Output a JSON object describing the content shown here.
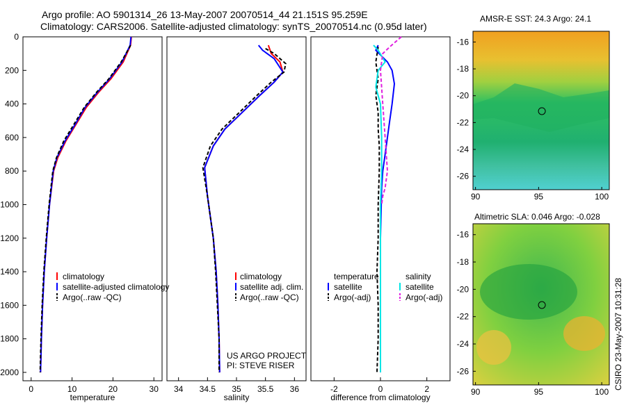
{
  "title": {
    "line1": "Argo profile: AO 5901314_26 13-May-2007 20070514_44 21.151S 95.259E",
    "line2": "Climatology: CARS2006. Satellite-adjusted climatology: synTS_20070514.nc (0.95d later)"
  },
  "footer_vertical": "CSIRO 23-May-2007 10:31:28",
  "project_note": [
    "US ARGO PROJECT",
    "PI: STEVE RISER"
  ],
  "colors": {
    "climatology": "#ff0000",
    "satellite": "#0000ff",
    "argo": "#000000",
    "sal_satellite": "#00e5e5",
    "sal_argo": "#e020e0"
  },
  "chart_data": [
    {
      "type": "line",
      "xlabel": "temperature",
      "xlim": [
        -2,
        32
      ],
      "xticks": [
        0,
        10,
        20,
        30
      ],
      "ylim": [
        2050,
        0
      ],
      "yticks": [
        0,
        200,
        400,
        600,
        800,
        1000,
        1200,
        1400,
        1600,
        1800,
        2000
      ],
      "legend": [
        "climatology",
        "satellite-adjusted climatology",
        "Argo(..raw -QC)"
      ],
      "series": [
        {
          "name": "climatology",
          "style": "solid",
          "color": "#ff0000",
          "x": [
            24.5,
            24.3,
            22.5,
            19.5,
            16.5,
            13.5,
            11.0,
            8.5,
            6.5,
            5.5,
            4.5,
            3.8,
            3.2,
            2.8,
            2.5,
            2.3
          ],
          "y": [
            0,
            50,
            150,
            250,
            330,
            420,
            520,
            620,
            720,
            800,
            1000,
            1200,
            1400,
            1600,
            1800,
            2000
          ]
        },
        {
          "name": "satellite-adjusted climatology",
          "style": "solid",
          "color": "#0000ff",
          "x": [
            24.4,
            24.2,
            22.2,
            19.2,
            16.2,
            13.2,
            10.8,
            8.3,
            6.3,
            5.4,
            4.5,
            3.8,
            3.2,
            2.8,
            2.5,
            2.3
          ],
          "y": [
            0,
            50,
            150,
            250,
            330,
            420,
            520,
            620,
            720,
            800,
            1000,
            1200,
            1400,
            1600,
            1800,
            2000
          ]
        },
        {
          "name": "Argo(..raw -QC)",
          "style": "dashed",
          "color": "#000000",
          "x": [
            24.3,
            24.1,
            22.0,
            19.0,
            16.0,
            13.0,
            10.5,
            8.0,
            6.2,
            5.3,
            4.4,
            3.7,
            3.1,
            2.7,
            2.4,
            2.2
          ],
          "y": [
            50,
            60,
            150,
            250,
            330,
            420,
            520,
            620,
            720,
            800,
            1000,
            1200,
            1400,
            1600,
            1800,
            2000
          ]
        }
      ]
    },
    {
      "type": "line",
      "xlabel": "salinity",
      "xlim": [
        33.8,
        36.2
      ],
      "xticks": [
        34,
        34.5,
        35,
        35.5,
        36
      ],
      "ylim": [
        2050,
        0
      ],
      "legend": [
        "climatology",
        "satellite adj. clim.",
        "Argo(..raw -QC)"
      ],
      "series": [
        {
          "name": "climatology",
          "style": "solid",
          "color": "#ff0000",
          "x": [
            35.55,
            35.6,
            35.75,
            35.8,
            35.65,
            35.4,
            35.1,
            34.8,
            34.6,
            34.45,
            34.5,
            34.6,
            34.65,
            34.68,
            34.7,
            34.71
          ],
          "y": [
            50,
            100,
            150,
            210,
            270,
            350,
            450,
            550,
            650,
            780,
            950,
            1200,
            1400,
            1600,
            1800,
            2000
          ]
        },
        {
          "name": "satellite adj. clim.",
          "style": "solid",
          "color": "#0000ff",
          "x": [
            35.38,
            35.45,
            35.65,
            35.8,
            35.65,
            35.4,
            35.1,
            34.8,
            34.6,
            34.45,
            34.5,
            34.6,
            34.65,
            34.68,
            34.7,
            34.71
          ],
          "y": [
            50,
            80,
            130,
            210,
            270,
            350,
            450,
            550,
            650,
            780,
            950,
            1200,
            1400,
            1600,
            1800,
            2000
          ]
        },
        {
          "name": "Argo(..raw -QC)",
          "style": "dashed",
          "color": "#000000",
          "x": [
            35.5,
            35.65,
            35.85,
            35.82,
            35.6,
            35.35,
            35.05,
            34.75,
            34.55,
            34.42,
            34.5,
            34.6,
            34.64,
            34.67,
            34.7,
            34.7
          ],
          "y": [
            70,
            100,
            160,
            210,
            270,
            350,
            450,
            550,
            650,
            780,
            950,
            1200,
            1400,
            1600,
            1800,
            2000
          ]
        }
      ]
    },
    {
      "type": "line",
      "xlabel": "difference from climatology",
      "xlim": [
        -3,
        3
      ],
      "xticks": [
        -2,
        0,
        2
      ],
      "ylim": [
        2050,
        0
      ],
      "legend": [
        "temperature",
        "satellite",
        "Argo(-adj)",
        "salinity",
        "satellite",
        "Argo(-adj)"
      ],
      "series": [
        {
          "name": "temperature satellite",
          "style": "solid",
          "color": "#0000ff",
          "x": [
            -0.1,
            -0.2,
            0.3,
            0.5,
            0.6,
            0.5,
            0.4,
            0.3,
            0.2,
            0.1,
            0.05,
            0.0,
            0.0,
            0.0,
            0.0
          ],
          "y": [
            50,
            80,
            150,
            200,
            280,
            400,
            500,
            600,
            700,
            800,
            900,
            1200,
            1500,
            1800,
            2000
          ]
        },
        {
          "name": "temperature Argo(-adj)",
          "style": "dashed",
          "color": "#000000",
          "x": [
            -0.1,
            -0.2,
            -0.1,
            -0.2,
            -0.1,
            -0.1,
            -0.05,
            -0.05,
            -0.1,
            -0.1,
            -0.15,
            -0.1,
            -0.1,
            -0.15
          ],
          "y": [
            60,
            150,
            250,
            350,
            450,
            550,
            650,
            800,
            1000,
            1200,
            1400,
            1600,
            1800,
            2000
          ]
        },
        {
          "name": "salinity satellite",
          "style": "solid",
          "color": "#00e5e5",
          "x": [
            -0.3,
            -0.1,
            0.2,
            -0.1,
            -0.2,
            0.0,
            0.05,
            0.05,
            0.0,
            0.0,
            0.0,
            0.0,
            0.0
          ],
          "y": [
            50,
            80,
            150,
            200,
            300,
            400,
            600,
            800,
            1000,
            1200,
            1500,
            1800,
            2000
          ]
        },
        {
          "name": "salinity Argo(-adj)",
          "style": "dashed",
          "color": "#e020e0",
          "x": [
            0.9,
            0.4,
            0.1,
            0.0,
            0.1,
            0.2,
            0.3,
            0.2,
            0.1,
            0.05
          ],
          "y": [
            0,
            60,
            100,
            200,
            400,
            600,
            800,
            900,
            950,
            1000
          ]
        }
      ]
    },
    {
      "type": "heatmap",
      "title": "AMSR-E SST: 24.3 Argo: 24.1",
      "xlim": [
        89.8,
        100.6
      ],
      "xticks": [
        90,
        95,
        100
      ],
      "ylim": [
        -27.0,
        -15.2
      ],
      "yticks": [
        -16,
        -18,
        -20,
        -22,
        -24,
        -26
      ],
      "marker": {
        "lon": 95.259,
        "lat": -21.151
      }
    },
    {
      "type": "heatmap",
      "title": "Altimetric SLA: 0.046 Argo: -0.028",
      "xlim": [
        89.8,
        100.6
      ],
      "xticks": [
        90,
        95,
        100
      ],
      "ylim": [
        -27.0,
        -15.2
      ],
      "yticks": [
        -16,
        -18,
        -20,
        -22,
        -24,
        -26
      ],
      "marker": {
        "lon": 95.259,
        "lat": -21.151
      }
    }
  ]
}
